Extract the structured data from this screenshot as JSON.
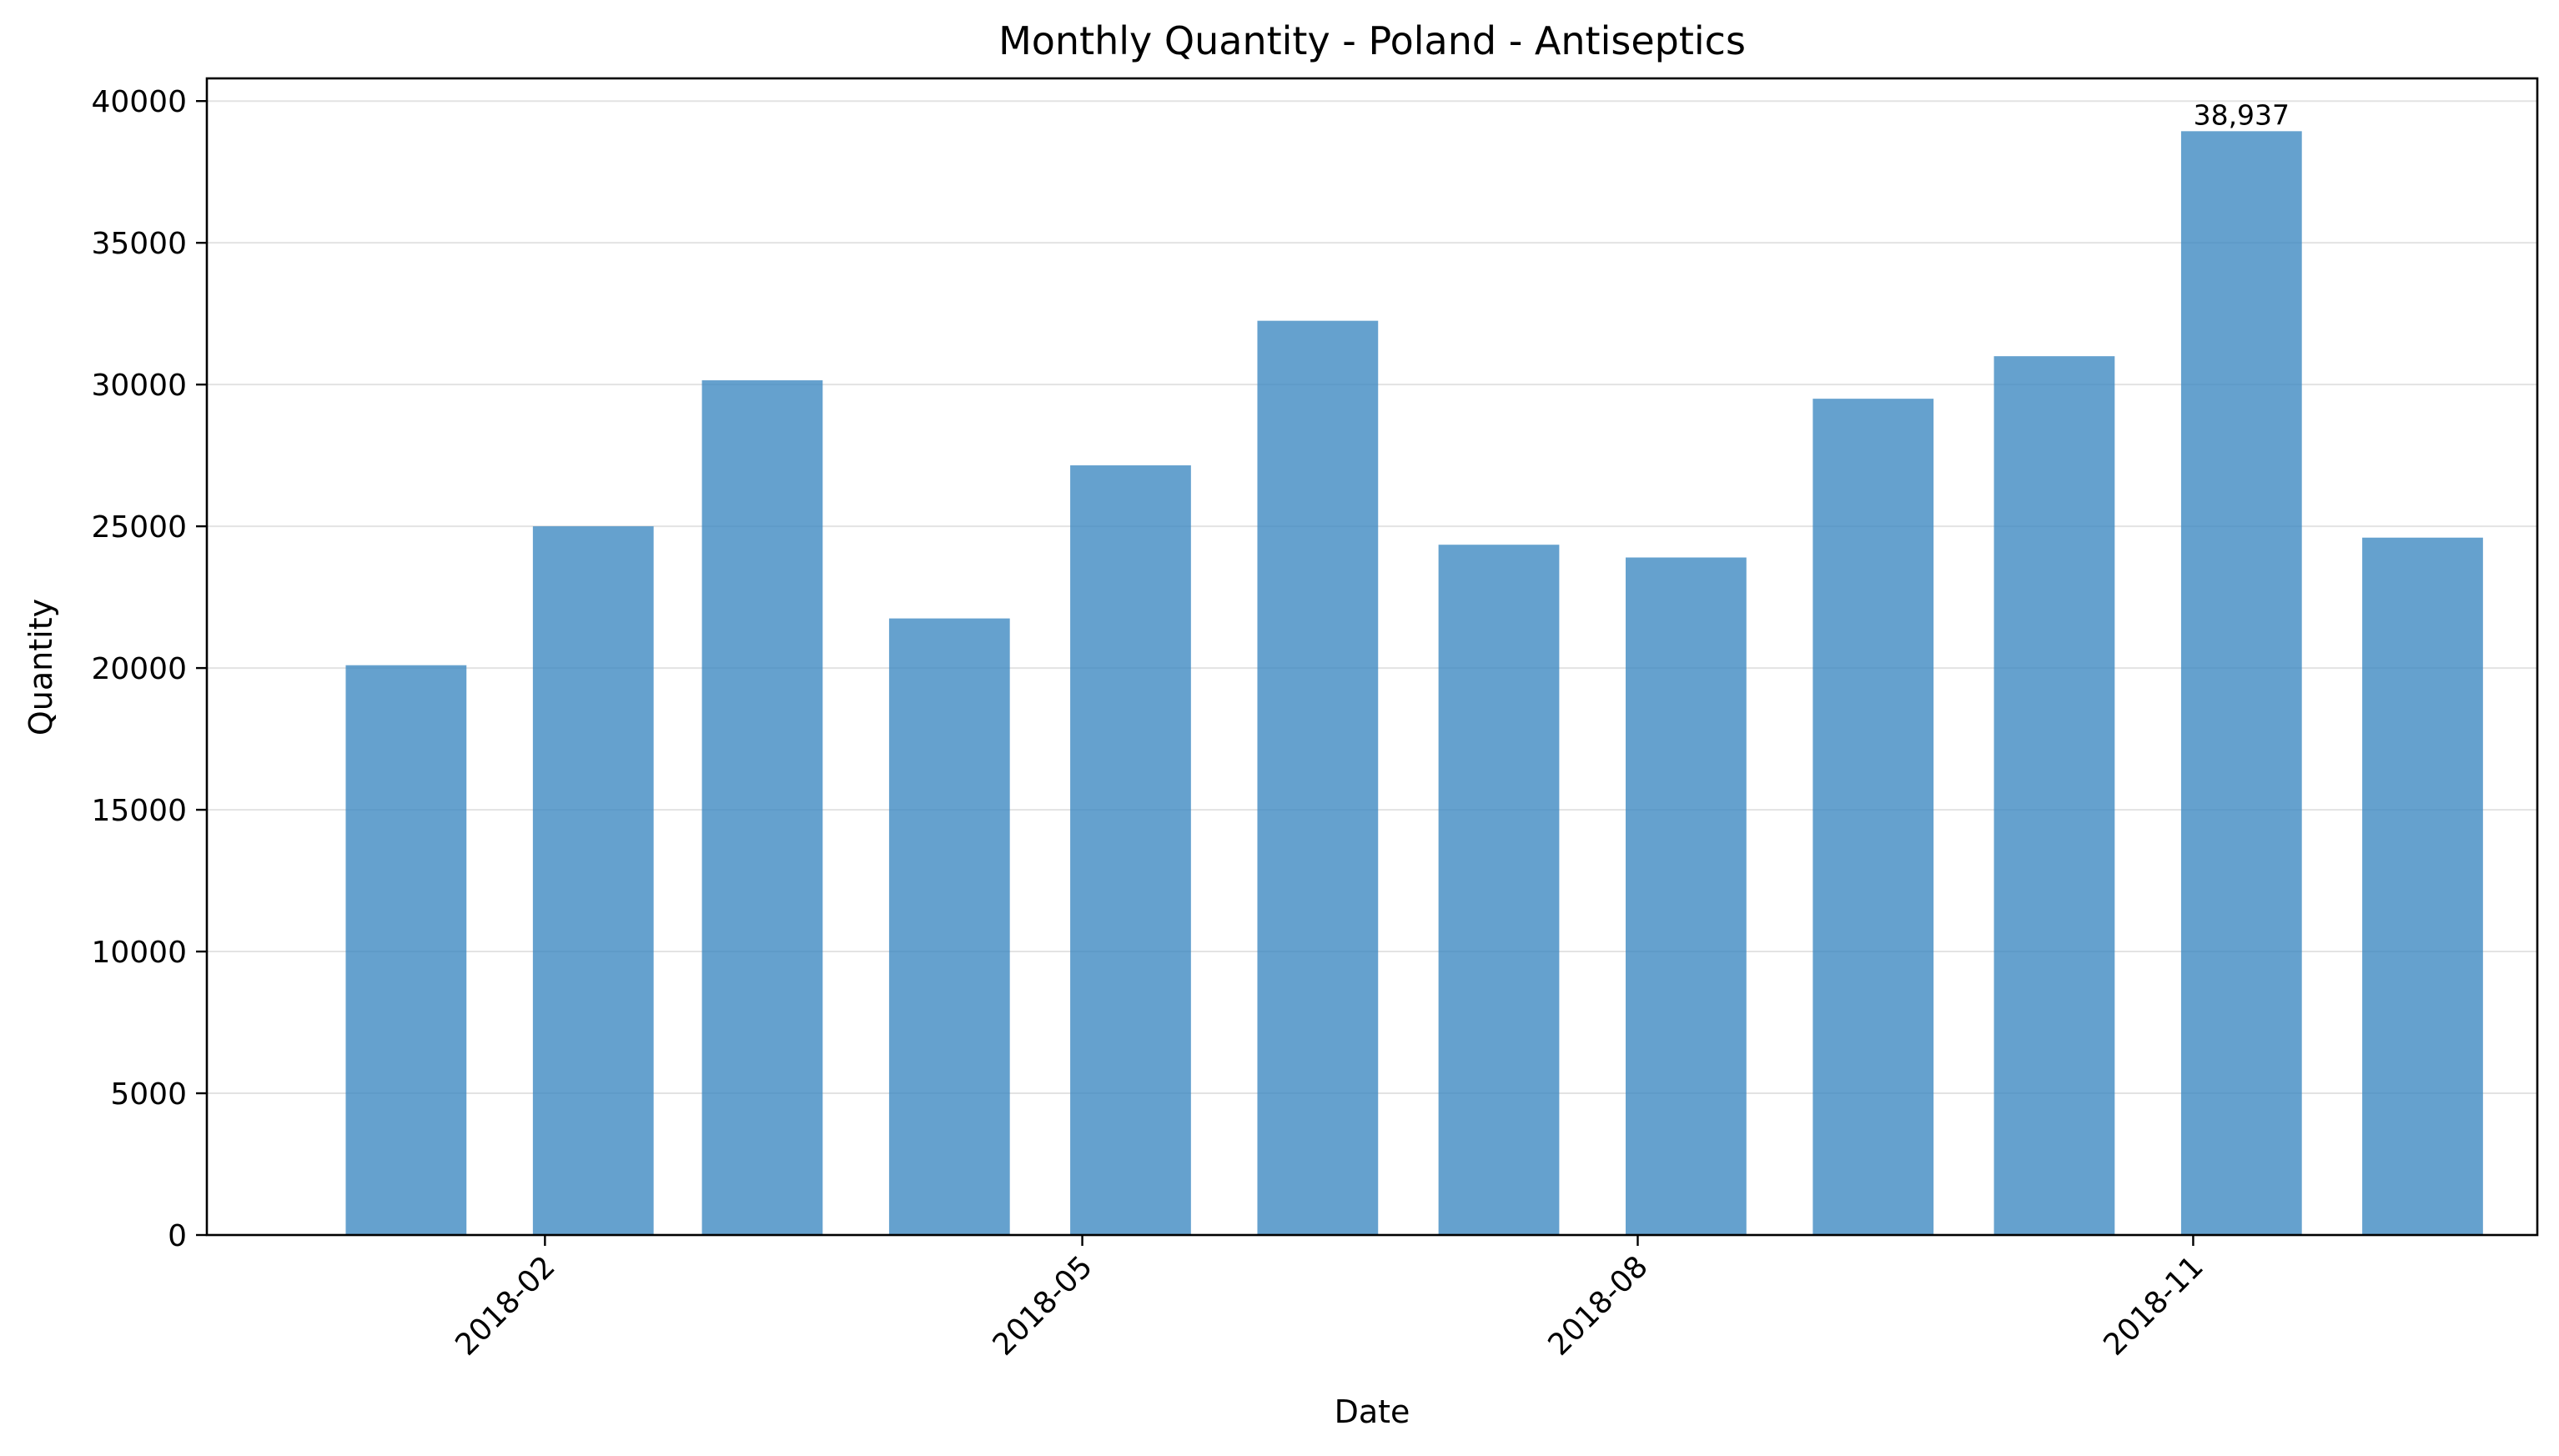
{
  "chart_data": {
    "type": "bar",
    "title": "Monthly Quantity - Poland - Antiseptics",
    "xlabel": "Date",
    "ylabel": "Quantity",
    "dates": [
      "2018-01-01",
      "2018-02-01",
      "2018-03-01",
      "2018-04-01",
      "2018-05-01",
      "2018-06-01",
      "2018-07-01",
      "2018-08-01",
      "2018-09-01",
      "2018-10-01",
      "2018-11-01",
      "2018-12-01"
    ],
    "values": [
      20100,
      25000,
      30150,
      21750,
      27150,
      32250,
      24350,
      23900,
      29500,
      31000,
      38937,
      24600
    ],
    "bar_color": "#3a86c0",
    "ylim": [
      0,
      40800
    ],
    "xlim": [
      "2017-12-07",
      "2018-12-28"
    ],
    "yticks": [
      0,
      5000,
      10000,
      15000,
      20000,
      25000,
      30000,
      35000,
      40000
    ],
    "ytick_labels": [
      "0",
      "5000",
      "10000",
      "15000",
      "20000",
      "25000",
      "30000",
      "35000",
      "40000"
    ],
    "xticks": [
      "2018-02-01",
      "2018-05-01",
      "2018-08-01",
      "2018-11-01"
    ],
    "xtick_labels": [
      "2018-02",
      "2018-05",
      "2018-08",
      "2018-11"
    ],
    "annotation": {
      "date": "2018-11-01",
      "text": "38,937"
    },
    "grid": "y",
    "legend": "none"
  }
}
